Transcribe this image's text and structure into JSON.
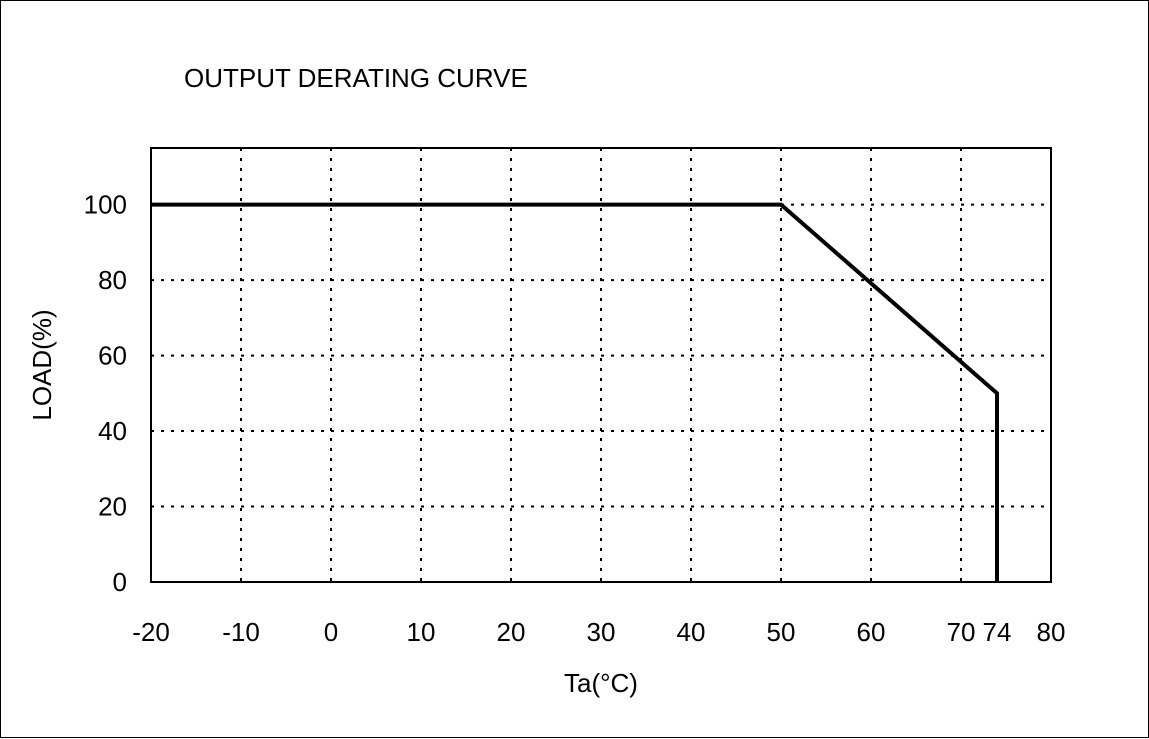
{
  "chart_data": {
    "type": "line",
    "title": "OUTPUT DERATING  CURVE",
    "xlabel": "Ta(°C)",
    "ylabel": "LOAD(%)",
    "xlim": [
      -20,
      80
    ],
    "ylim": [
      0,
      115
    ],
    "x_ticks": [
      -20,
      -10,
      0,
      10,
      20,
      30,
      40,
      50,
      60,
      70,
      74,
      80
    ],
    "x_tick_labels": [
      "-20",
      "-10",
      "0",
      "10",
      "20",
      "30",
      "40",
      "50",
      "60",
      "70",
      "74",
      "80"
    ],
    "x_grid": [
      -10,
      0,
      10,
      20,
      30,
      40,
      50,
      60,
      70
    ],
    "y_ticks": [
      0,
      20,
      40,
      60,
      80,
      100
    ],
    "y_tick_labels": [
      "0",
      "20",
      "40",
      "60",
      "80",
      "100"
    ],
    "y_grid": [
      20,
      40,
      60,
      80,
      100
    ],
    "grid": true,
    "grid_style": "dotted",
    "series": [
      {
        "x": [
          -20,
          50,
          74,
          74
        ],
        "y": [
          100,
          100,
          50,
          0
        ],
        "color": "#000000"
      }
    ]
  }
}
